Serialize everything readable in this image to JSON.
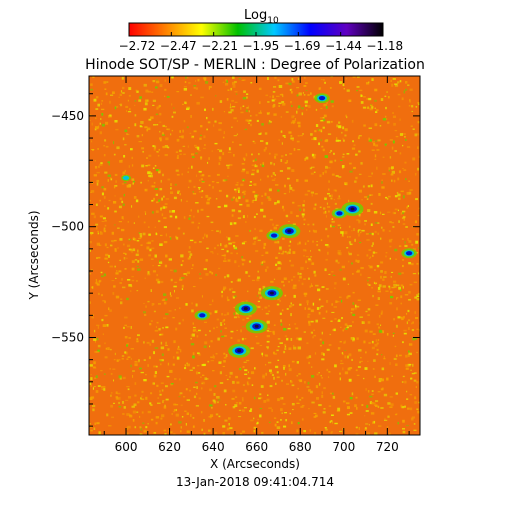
{
  "colorbar": {
    "title_main": "Log",
    "title_sub": "10",
    "ticks": [
      "-2.72",
      "-2.47",
      "-2.21",
      "-1.95",
      "-1.69",
      "-1.44",
      "-1.18"
    ],
    "colors": [
      "#ff0000",
      "#ff8000",
      "#ffff00",
      "#00c000",
      "#00c8ff",
      "#0000ff",
      "#6000c0",
      "#000000"
    ]
  },
  "title": "Hinode SOT/SP - MERLIN : Degree of Polarization",
  "timestamp": "13-Jan-2018 09:41:04.714",
  "palette": {
    "base": "#f06e0e",
    "mid": "#f5a300",
    "speck": "#e6e600",
    "green": "#6fd000",
    "cyan": "#00c8d8",
    "blue": "#0018d0",
    "dark": "#101040"
  },
  "chart_data": {
    "type": "heatmap",
    "xlabel": "X (Arcseconds)",
    "ylabel": "Y (Arcseconds)",
    "xlim": [
      583,
      735
    ],
    "ylim": [
      -594,
      -432
    ],
    "x_ticks": [
      600,
      620,
      640,
      660,
      680,
      700,
      720
    ],
    "y_ticks": [
      -450,
      -500,
      -550
    ],
    "colorbar_range_log10": [
      -2.72,
      -1.18
    ],
    "features": [
      {
        "x": 655,
        "y": -537,
        "level": "high"
      },
      {
        "x": 667,
        "y": -530,
        "level": "high"
      },
      {
        "x": 660,
        "y": -545,
        "level": "high"
      },
      {
        "x": 652,
        "y": -556,
        "level": "high"
      },
      {
        "x": 675,
        "y": -502,
        "level": "high"
      },
      {
        "x": 668,
        "y": -504,
        "level": "medium"
      },
      {
        "x": 704,
        "y": -492,
        "level": "high"
      },
      {
        "x": 698,
        "y": -494,
        "level": "medium"
      },
      {
        "x": 730,
        "y": -512,
        "level": "medium"
      },
      {
        "x": 635,
        "y": -540,
        "level": "medium"
      },
      {
        "x": 690,
        "y": -442,
        "level": "medium"
      },
      {
        "x": 600,
        "y": -478,
        "level": "low"
      }
    ]
  }
}
